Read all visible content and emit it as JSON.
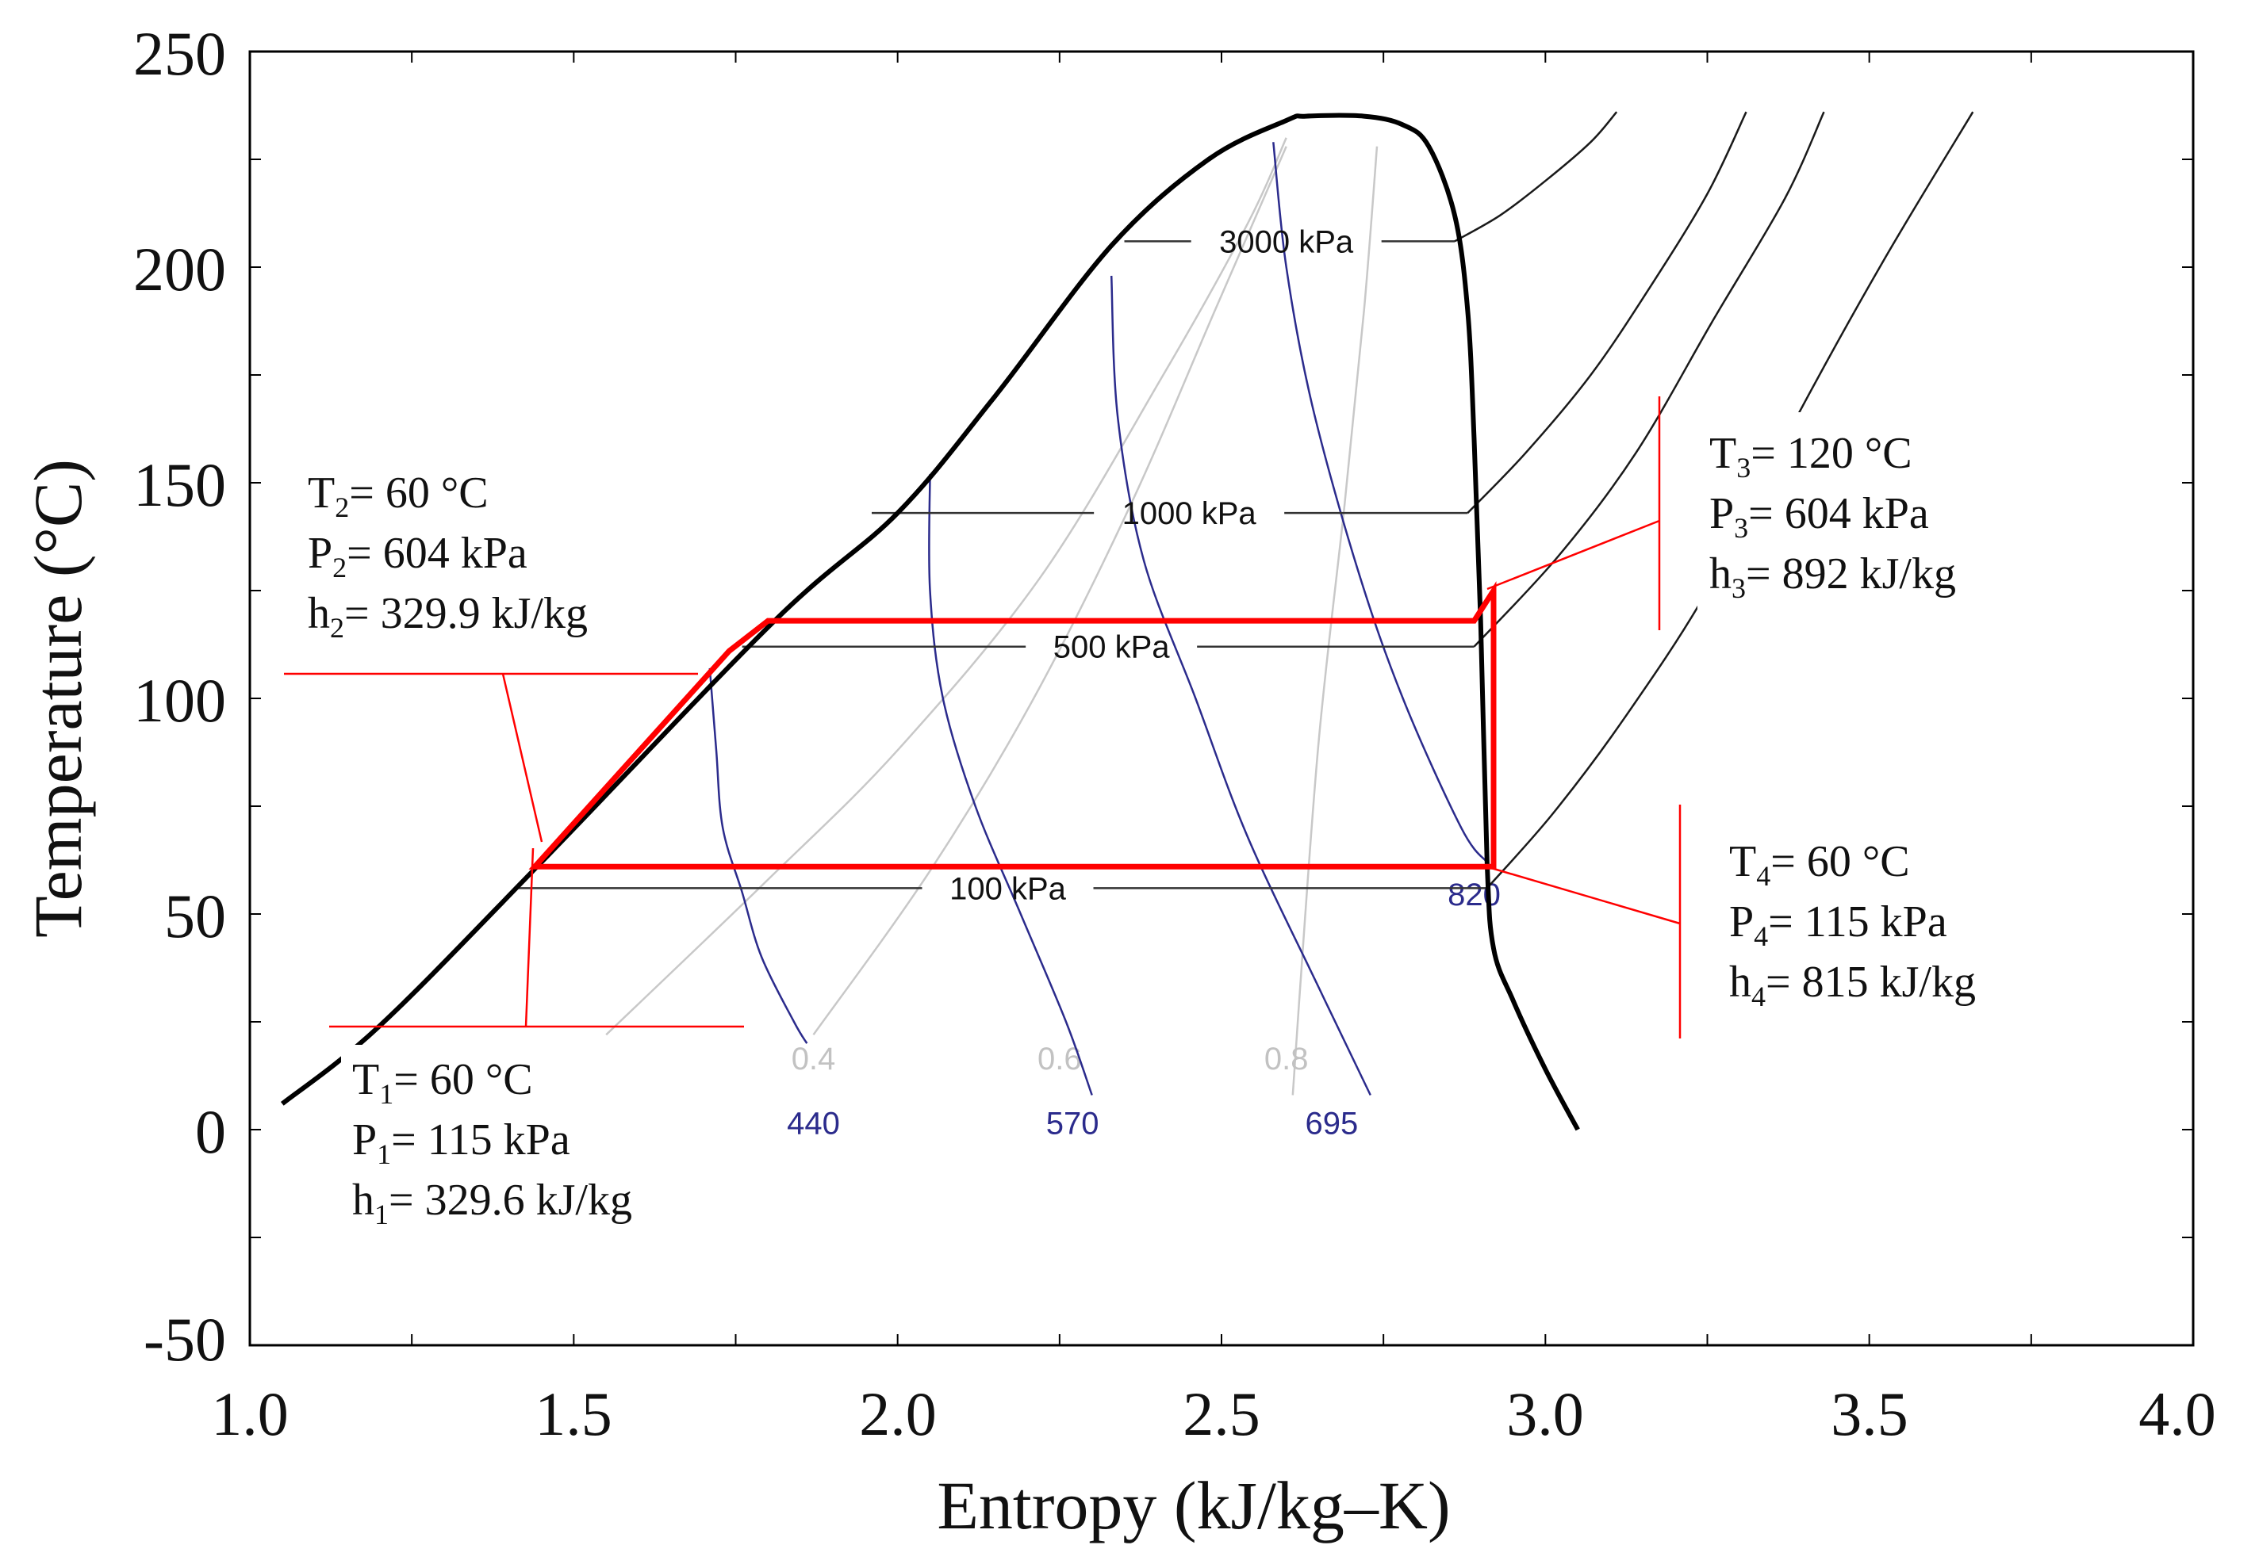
{
  "chart_data": {
    "type": "line",
    "xlabel": "Entropy (kJ/kg–K)",
    "ylabel": "Temperature  (°C)",
    "xlim": [
      1.0,
      4.0
    ],
    "ylim": [
      -50,
      250
    ],
    "x_ticks": [
      "1.0",
      "1.5",
      "2.0",
      "2.5",
      "3.0",
      "3.5",
      "4.0"
    ],
    "y_ticks": [
      "250",
      "200",
      "150",
      "100",
      "50",
      "0",
      "-50"
    ],
    "colors": {
      "dome": "#000000",
      "isobar": "#333333",
      "quality": "#c8c8c8",
      "enthalpy": "#2b2b8c",
      "cycle": "#ff0000",
      "callout": "#ff0000"
    },
    "saturation_dome": [
      [
        1.05,
        6
      ],
      [
        1.2,
        24
      ],
      [
        1.45,
        62
      ],
      [
        1.81,
        118
      ],
      [
        2.0,
        143
      ],
      [
        2.15,
        170
      ],
      [
        2.33,
        205
      ],
      [
        2.48,
        225
      ],
      [
        2.6,
        234
      ],
      [
        2.63,
        235
      ],
      [
        2.72,
        235
      ],
      [
        2.78,
        233
      ],
      [
        2.82,
        228
      ],
      [
        2.86,
        212
      ],
      [
        2.88,
        190
      ],
      [
        2.89,
        160
      ],
      [
        2.9,
        118
      ],
      [
        2.91,
        62
      ],
      [
        2.92,
        42
      ],
      [
        2.95,
        30
      ],
      [
        3.0,
        14
      ],
      [
        3.05,
        0
      ]
    ],
    "isobars": [
      {
        "name": "3000 kPa",
        "T": 206,
        "s_liquid": 2.35,
        "s_vapor": 2.86,
        "label_s": 2.6,
        "superheat": [
          [
            2.86,
            206
          ],
          [
            2.93,
            212
          ],
          [
            3.0,
            220
          ],
          [
            3.07,
            229
          ],
          [
            3.11,
            236
          ]
        ]
      },
      {
        "name": "1000 kPa",
        "T": 143,
        "s_liquid": 1.96,
        "s_vapor": 2.88,
        "label_s": 2.45,
        "superheat": [
          [
            2.88,
            143
          ],
          [
            2.97,
            157
          ],
          [
            3.07,
            175
          ],
          [
            3.16,
            195
          ],
          [
            3.25,
            217
          ],
          [
            3.31,
            236
          ]
        ]
      },
      {
        "name": "500 kPa",
        "T": 112,
        "s_liquid": 1.76,
        "s_vapor": 2.89,
        "label_s": 2.33,
        "superheat": [
          [
            2.89,
            112
          ],
          [
            3.02,
            133
          ],
          [
            3.14,
            157
          ],
          [
            3.26,
            188
          ],
          [
            3.37,
            216
          ],
          [
            3.43,
            236
          ]
        ]
      },
      {
        "name": "100 kPa",
        "T": 56,
        "s_liquid": 1.41,
        "s_vapor": 2.91,
        "label_s": 2.17,
        "superheat": [
          [
            2.91,
            56
          ],
          [
            3.01,
            73
          ],
          [
            3.12,
            95
          ],
          [
            3.25,
            125
          ],
          [
            3.38,
            163
          ],
          [
            3.52,
            201
          ],
          [
            3.66,
            236
          ]
        ]
      }
    ],
    "quality_lines": [
      {
        "name": "0.4",
        "label_s": 1.87,
        "label_T": 14,
        "points": [
          [
            1.55,
            22
          ],
          [
            1.8,
            58
          ],
          [
            2.0,
            88
          ],
          [
            2.22,
            128
          ],
          [
            2.41,
            175
          ],
          [
            2.54,
            210
          ],
          [
            2.6,
            230
          ]
        ]
      },
      {
        "name": "0.6",
        "label_s": 2.25,
        "label_T": 14,
        "points": [
          [
            1.87,
            22
          ],
          [
            2.05,
            60
          ],
          [
            2.21,
            100
          ],
          [
            2.36,
            145
          ],
          [
            2.49,
            190
          ],
          [
            2.6,
            228
          ]
        ]
      },
      {
        "name": "0.8",
        "label_s": 2.6,
        "label_T": 14,
        "points": [
          [
            2.61,
            8
          ],
          [
            2.62,
            30
          ],
          [
            2.65,
            90
          ],
          [
            2.69,
            145
          ],
          [
            2.72,
            190
          ],
          [
            2.74,
            228
          ]
        ]
      }
    ],
    "enthalpy_lines": [
      {
        "name": "440",
        "label_s": 1.87,
        "label_T": -1,
        "points": [
          [
            1.71,
            107
          ],
          [
            1.72,
            88
          ],
          [
            1.73,
            70
          ],
          [
            1.76,
            55
          ],
          [
            1.79,
            40
          ],
          [
            1.84,
            25
          ],
          [
            1.86,
            20
          ]
        ]
      },
      {
        "name": "570",
        "label_s": 2.27,
        "label_T": -1,
        "points": [
          [
            2.05,
            152
          ],
          [
            2.05,
            125
          ],
          [
            2.07,
            100
          ],
          [
            2.12,
            75
          ],
          [
            2.19,
            50
          ],
          [
            2.26,
            25
          ],
          [
            2.3,
            8
          ]
        ]
      },
      {
        "name": "695",
        "label_s": 2.67,
        "label_T": -1,
        "points": [
          [
            2.33,
            198
          ],
          [
            2.34,
            165
          ],
          [
            2.38,
            132
          ],
          [
            2.46,
            100
          ],
          [
            2.54,
            68
          ],
          [
            2.65,
            33
          ],
          [
            2.73,
            8
          ]
        ]
      },
      {
        "name": "820",
        "label_s": 2.89,
        "label_T": 52,
        "points": [
          [
            2.58,
            229
          ],
          [
            2.6,
            200
          ],
          [
            2.64,
            168
          ],
          [
            2.71,
            130
          ],
          [
            2.78,
            100
          ],
          [
            2.87,
            70
          ],
          [
            2.91,
            62
          ]
        ]
      }
    ],
    "cycle": [
      [
        1.44,
        61
      ],
      [
        1.74,
        111
      ],
      [
        1.8,
        118
      ],
      [
        2.89,
        118
      ],
      [
        2.92,
        125
      ],
      [
        2.92,
        61
      ]
    ],
    "states": [
      {
        "id": "1",
        "T": "60 °C",
        "P": "115 kPa",
        "h": "329.6 kJ/kg"
      },
      {
        "id": "2",
        "T": "60 °C",
        "P": "604 kPa",
        "h": "329.9 kJ/kg"
      },
      {
        "id": "3",
        "T": "120 °C",
        "P": "604 kPa",
        "h": "892 kJ/kg"
      },
      {
        "id": "4",
        "T": "60 °C",
        "P": "115 kPa",
        "h": "815 kJ/kg"
      }
    ]
  }
}
